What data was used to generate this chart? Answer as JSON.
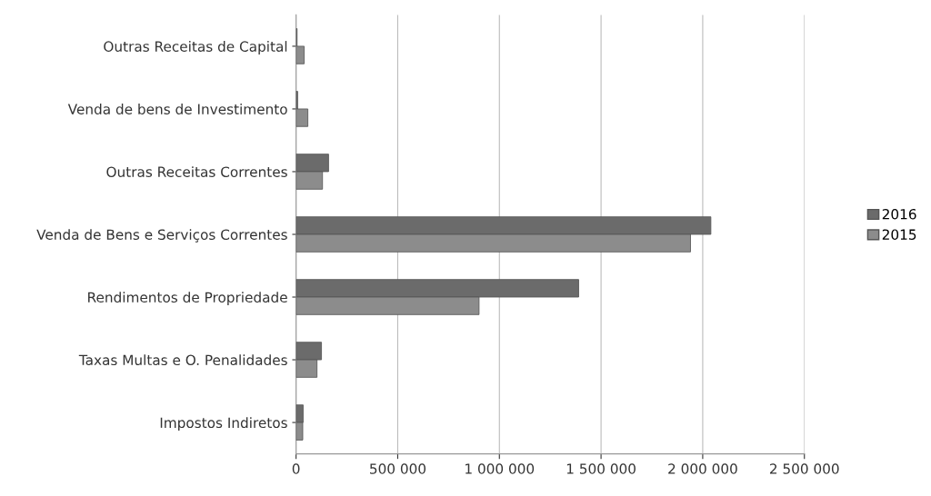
{
  "chart_data": {
    "type": "bar",
    "orientation": "horizontal",
    "categories": [
      "Outras Receitas de Capital",
      "Venda de bens de Investimento",
      "Outras Receitas Correntes",
      "Venda de Bens e Serviços Correntes",
      "Rendimentos de Propriedade",
      "Taxas Multas e O. Penalidades",
      "Impostos Indiretos"
    ],
    "series": [
      {
        "name": "2016",
        "color": "#6b6b6b",
        "values": [
          5000,
          8000,
          160000,
          2040000,
          1390000,
          125000,
          35000
        ]
      },
      {
        "name": "2015",
        "color": "#8c8c8c",
        "values": [
          40000,
          58000,
          130000,
          1940000,
          900000,
          103000,
          33000
        ]
      }
    ],
    "xlim": [
      0,
      2500000
    ],
    "xticks": [
      {
        "value": 0,
        "label": "0"
      },
      {
        "value": 500000,
        "label": "500 000"
      },
      {
        "value": 1000000,
        "label": "1 000 000"
      },
      {
        "value": 1500000,
        "label": "1 500 000"
      },
      {
        "value": 2000000,
        "label": "2 000 000"
      },
      {
        "value": 2500000,
        "label": "2 500 000"
      }
    ],
    "grid": "x",
    "legend": "right"
  }
}
